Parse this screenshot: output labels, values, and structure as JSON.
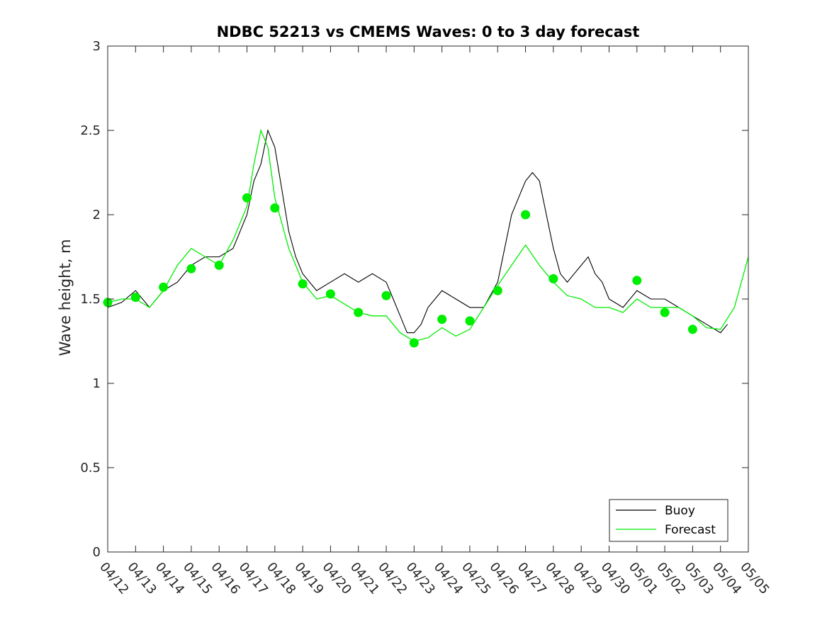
{
  "chart_data": {
    "type": "line",
    "title": "NDBC 52213 vs CMEMS Waves: 0 to 3 day forecast",
    "xlabel": "",
    "ylabel": "Wave height, m",
    "ylim": [
      0,
      3
    ],
    "yticks": [
      0,
      0.5,
      1,
      1.5,
      2,
      2.5,
      3
    ],
    "ytick_labels": [
      "0",
      "0.5",
      "1",
      "1.5",
      "2",
      "2.5",
      "3"
    ],
    "xlim_days": [
      0,
      23
    ],
    "xtick_labels": [
      "04/12",
      "04/13",
      "04/14",
      "04/15",
      "04/16",
      "04/17",
      "04/18",
      "04/19",
      "04/20",
      "04/21",
      "04/22",
      "04/23",
      "04/24",
      "04/25",
      "04/26",
      "04/27",
      "04/28",
      "04/29",
      "04/30",
      "05/01",
      "05/02",
      "05/03",
      "05/04",
      "05/05"
    ],
    "grid": false,
    "legend": {
      "position": "bottom-right",
      "entries": [
        "Buoy",
        "Forecast"
      ]
    },
    "colors": {
      "buoy": "#000000",
      "forecast": "#00ee00"
    },
    "buoy": {
      "name": "Buoy",
      "x": [
        "04/12",
        "04/12 12:00",
        "04/13",
        "04/13 12:00",
        "04/14",
        "04/14 12:00",
        "04/15",
        "04/15 12:00",
        "04/16",
        "04/16 12:00",
        "04/17",
        "04/17 06:00",
        "04/17 12:00",
        "04/17 18:00",
        "04/18",
        "04/18 06:00",
        "04/18 12:00",
        "04/18 18:00",
        "04/19",
        "04/19 12:00",
        "04/20",
        "04/20 12:00",
        "04/21",
        "04/21 12:00",
        "04/22",
        "04/22 06:00",
        "04/22 12:00",
        "04/22 18:00",
        "04/23",
        "04/23 06:00",
        "04/23 12:00",
        "04/24",
        "04/24 12:00",
        "04/25",
        "04/25 12:00",
        "04/26",
        "04/26 06:00",
        "04/26 12:00",
        "04/26 18:00",
        "04/27",
        "04/27 06:00",
        "04/27 12:00",
        "04/27 18:00",
        "04/28",
        "04/28 06:00",
        "04/28 12:00",
        "04/28 18:00",
        "04/29",
        "04/29 06:00",
        "04/29 12:00",
        "04/29 18:00",
        "04/30",
        "04/30 12:00",
        "05/01",
        "05/01 12:00",
        "05/02",
        "05/02 12:00",
        "05/03",
        "05/03 12:00",
        "05/04",
        "05/04 06:00"
      ],
      "values": [
        1.45,
        1.48,
        1.55,
        1.45,
        1.55,
        1.6,
        1.7,
        1.75,
        1.75,
        1.8,
        2.0,
        2.2,
        2.3,
        2.5,
        2.4,
        2.15,
        1.9,
        1.75,
        1.65,
        1.55,
        1.6,
        1.65,
        1.6,
        1.65,
        1.6,
        1.5,
        1.4,
        1.3,
        1.3,
        1.35,
        1.45,
        1.55,
        1.5,
        1.45,
        1.45,
        1.6,
        1.8,
        2.0,
        2.1,
        2.2,
        2.25,
        2.2,
        2.0,
        1.8,
        1.65,
        1.6,
        1.65,
        1.7,
        1.75,
        1.65,
        1.6,
        1.5,
        1.45,
        1.55,
        1.5,
        1.5,
        1.45,
        1.4,
        1.35,
        1.3,
        1.35
      ]
    },
    "forecast": {
      "name": "Forecast",
      "x": [
        "04/12",
        "04/12 12:00",
        "04/13",
        "04/13 12:00",
        "04/14",
        "04/14 12:00",
        "04/15",
        "04/15 12:00",
        "04/16",
        "04/16 12:00",
        "04/17",
        "04/17 06:00",
        "04/17 12:00",
        "04/17 18:00",
        "04/18",
        "04/18 06:00",
        "04/18 12:00",
        "04/19",
        "04/19 12:00",
        "04/20",
        "04/20 12:00",
        "04/21",
        "04/21 12:00",
        "04/22",
        "04/22 12:00",
        "04/23",
        "04/23 12:00",
        "04/24",
        "04/24 12:00",
        "04/25",
        "04/25 12:00",
        "04/26",
        "04/26 12:00",
        "04/27",
        "04/27 12:00",
        "04/28",
        "04/28 12:00",
        "04/29",
        "04/29 12:00",
        "04/30",
        "04/30 12:00",
        "05/01",
        "05/01 12:00",
        "05/02",
        "05/02 12:00",
        "05/03",
        "05/03 12:00",
        "05/04",
        "05/04 12:00",
        "05/05"
      ],
      "values": [
        1.48,
        1.5,
        1.5,
        1.45,
        1.55,
        1.7,
        1.8,
        1.75,
        1.7,
        1.85,
        2.05,
        2.3,
        2.5,
        2.4,
        2.1,
        1.95,
        1.8,
        1.6,
        1.5,
        1.52,
        1.47,
        1.42,
        1.4,
        1.4,
        1.3,
        1.25,
        1.27,
        1.33,
        1.28,
        1.32,
        1.45,
        1.58,
        1.7,
        1.82,
        1.7,
        1.6,
        1.52,
        1.5,
        1.45,
        1.45,
        1.42,
        1.5,
        1.45,
        1.45,
        1.45,
        1.4,
        1.33,
        1.32,
        1.45,
        1.75
      ]
    },
    "forecast_starts": {
      "x": [
        "04/12",
        "04/13",
        "04/14",
        "04/15",
        "04/16",
        "04/17",
        "04/18",
        "04/19",
        "04/20",
        "04/21",
        "04/22",
        "04/23",
        "04/24",
        "04/25",
        "04/26",
        "04/27",
        "04/28",
        "05/01",
        "05/02",
        "05/03"
      ],
      "values": [
        1.48,
        1.51,
        1.57,
        1.68,
        1.7,
        2.1,
        2.04,
        1.59,
        1.53,
        1.42,
        1.52,
        1.24,
        1.38,
        1.37,
        1.55,
        2.0,
        1.62,
        1.61,
        1.42,
        1.32
      ]
    }
  }
}
